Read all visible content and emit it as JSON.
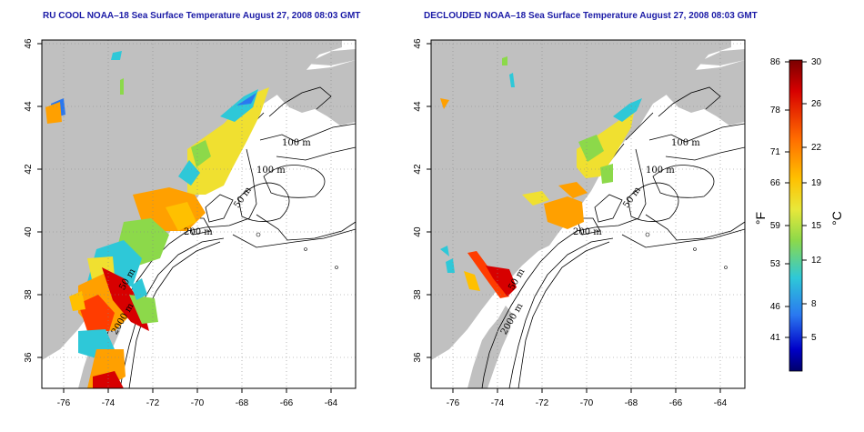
{
  "panels": [
    {
      "title": "RU COOL NOAA–18 Sea Surface Temperature August 27, 2008 08:03 GMT",
      "x_ticks": [
        "-76",
        "-74",
        "-72",
        "-70",
        "-68",
        "-66",
        "-64"
      ],
      "y_ticks": [
        "36",
        "38",
        "40",
        "42",
        "44",
        "46"
      ],
      "contour_labels": [
        "100 m",
        "100 m",
        "50 m",
        "200 m",
        "2000 m",
        "50 m"
      ]
    },
    {
      "title": "DECLOUDED NOAA–18 Sea Surface Temperature August 27, 2008 08:03 GMT",
      "x_ticks": [
        "-76",
        "-74",
        "-72",
        "-70",
        "-68",
        "-66",
        "-64"
      ],
      "y_ticks": [
        "36",
        "38",
        "40",
        "42",
        "44",
        "46"
      ],
      "contour_labels": [
        "100 m",
        "100 m",
        "50 m",
        "200 m",
        "2000 m",
        "50 m"
      ]
    }
  ],
  "colorbar": {
    "f_ticks": [
      "86",
      "78",
      "71",
      "66",
      "59",
      "53",
      "46",
      "41"
    ],
    "c_ticks": [
      "30",
      "26",
      "22",
      "19",
      "15",
      "12",
      "8",
      "5"
    ],
    "f_label": "°F",
    "c_label": "°C",
    "colors": [
      "#d70000",
      "#ff3c00",
      "#ffa000",
      "#f0e030",
      "#8cd94a",
      "#2ec8d8",
      "#2a78f0",
      "#0000c8",
      "#00006a"
    ]
  },
  "colors": {
    "land": "#c0c0c0",
    "title": "#1a1aa6"
  }
}
